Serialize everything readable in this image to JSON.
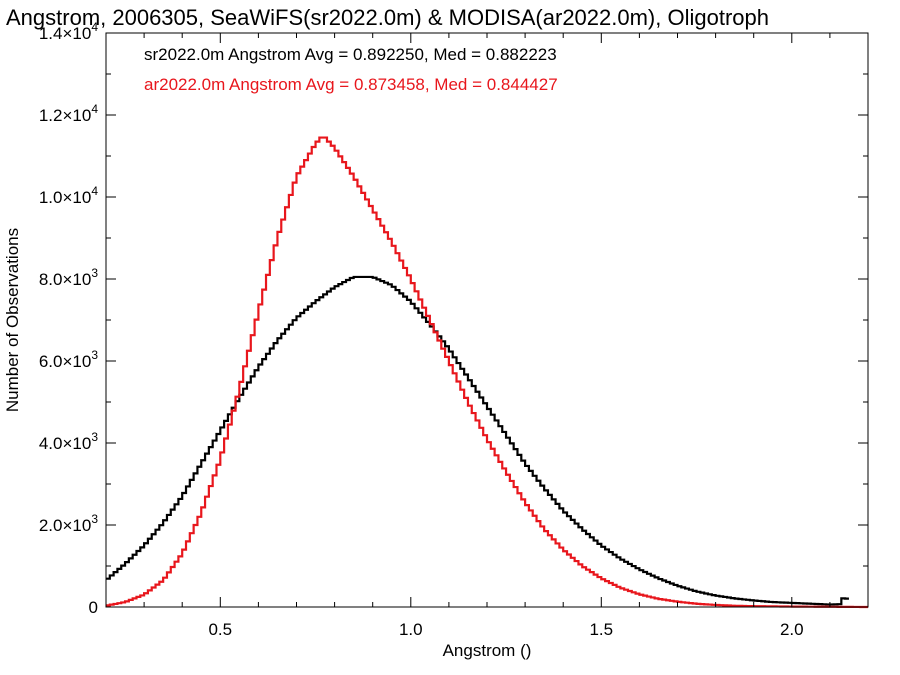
{
  "chart_data": {
    "type": "line",
    "title": "Angstrom, 2006305, SeaWiFS(sr2022.0m) & MODISA(ar2022.0m), Oligotroph",
    "xlabel": "Angstrom ()",
    "ylabel": "Number of Observations",
    "xlim": [
      0.2,
      2.2
    ],
    "ylim": [
      0,
      14000
    ],
    "x_ticks": [
      0.5,
      1.0,
      1.5,
      2.0
    ],
    "x_tick_labels": [
      "0.5",
      "1.0",
      "1.5",
      "2.0"
    ],
    "y_ticks": [
      0,
      2000,
      4000,
      6000,
      8000,
      10000,
      12000,
      14000
    ],
    "y_tick_labels": [
      {
        "mant": "0",
        "exp": ""
      },
      {
        "mant": "2.0×10",
        "exp": "3"
      },
      {
        "mant": "4.0×10",
        "exp": "3"
      },
      {
        "mant": "6.0×10",
        "exp": "3"
      },
      {
        "mant": "8.0×10",
        "exp": "3"
      },
      {
        "mant": "1.0×10",
        "exp": "4"
      },
      {
        "mant": "1.2×10",
        "exp": "4"
      },
      {
        "mant": "1.4×10",
        "exp": "4"
      }
    ],
    "grid": false,
    "legend_position": "top-left",
    "series": [
      {
        "name": "sr2022.0m",
        "label": "sr2022.0m Angstrom Avg = 0.892250, Med = 0.882223",
        "color": "#000000",
        "step": true,
        "points": [
          [
            0.2,
            650
          ],
          [
            0.25,
            1050
          ],
          [
            0.3,
            1500
          ],
          [
            0.35,
            2050
          ],
          [
            0.4,
            2700
          ],
          [
            0.45,
            3500
          ],
          [
            0.5,
            4300
          ],
          [
            0.55,
            5100
          ],
          [
            0.6,
            5850
          ],
          [
            0.65,
            6500
          ],
          [
            0.7,
            7050
          ],
          [
            0.75,
            7450
          ],
          [
            0.8,
            7800
          ],
          [
            0.85,
            8050
          ],
          [
            0.9,
            8050
          ],
          [
            0.95,
            7850
          ],
          [
            1.0,
            7450
          ],
          [
            1.05,
            6900
          ],
          [
            1.1,
            6300
          ],
          [
            1.15,
            5600
          ],
          [
            1.2,
            4900
          ],
          [
            1.25,
            4200
          ],
          [
            1.3,
            3500
          ],
          [
            1.35,
            2900
          ],
          [
            1.4,
            2350
          ],
          [
            1.45,
            1900
          ],
          [
            1.5,
            1500
          ],
          [
            1.55,
            1180
          ],
          [
            1.6,
            920
          ],
          [
            1.65,
            700
          ],
          [
            1.7,
            520
          ],
          [
            1.75,
            380
          ],
          [
            1.8,
            280
          ],
          [
            1.85,
            210
          ],
          [
            1.9,
            160
          ],
          [
            1.95,
            120
          ],
          [
            2.0,
            100
          ],
          [
            2.05,
            80
          ],
          [
            2.1,
            60
          ],
          [
            2.13,
            70
          ],
          [
            2.14,
            350
          ],
          [
            2.15,
            60
          ]
        ]
      },
      {
        "name": "ar2022.0m",
        "label": "ar2022.0m Angstrom Avg = 0.873458, Med = 0.844427",
        "color": "#e8161c",
        "step": true,
        "points": [
          [
            0.2,
            30
          ],
          [
            0.25,
            120
          ],
          [
            0.3,
            300
          ],
          [
            0.35,
            650
          ],
          [
            0.4,
            1300
          ],
          [
            0.45,
            2300
          ],
          [
            0.5,
            3600
          ],
          [
            0.55,
            5300
          ],
          [
            0.6,
            7200
          ],
          [
            0.65,
            9000
          ],
          [
            0.7,
            10500
          ],
          [
            0.75,
            11300
          ],
          [
            0.77,
            11500
          ],
          [
            0.8,
            11200
          ],
          [
            0.85,
            10500
          ],
          [
            0.9,
            9700
          ],
          [
            0.95,
            8900
          ],
          [
            1.0,
            8000
          ],
          [
            1.05,
            7000
          ],
          [
            1.1,
            6000
          ],
          [
            1.15,
            5000
          ],
          [
            1.2,
            4100
          ],
          [
            1.25,
            3300
          ],
          [
            1.3,
            2550
          ],
          [
            1.35,
            1900
          ],
          [
            1.4,
            1400
          ],
          [
            1.45,
            1000
          ],
          [
            1.5,
            700
          ],
          [
            1.55,
            470
          ],
          [
            1.6,
            310
          ],
          [
            1.65,
            200
          ],
          [
            1.7,
            130
          ],
          [
            1.75,
            80
          ],
          [
            1.8,
            50
          ],
          [
            1.85,
            30
          ],
          [
            1.9,
            20
          ],
          [
            2.0,
            10
          ],
          [
            2.1,
            5
          ],
          [
            2.2,
            0
          ]
        ]
      }
    ]
  }
}
